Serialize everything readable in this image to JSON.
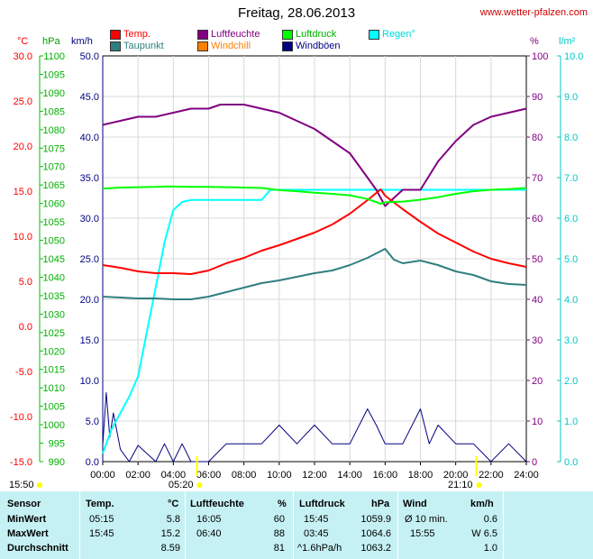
{
  "header": {
    "title": "Freitag, 28.06.2013",
    "site": "www.wetter-pfalzen.com"
  },
  "units": {
    "temp": "°C",
    "hpa": "hPa",
    "kmh": "km/h",
    "pct": "%",
    "lm2": "l/m²"
  },
  "legend": [
    {
      "label": "Temp.",
      "color": "#ff0000",
      "label_color": "#ff0000"
    },
    {
      "label": "Luftfeuchte",
      "color": "#800080",
      "label_color": "#800080"
    },
    {
      "label": "Luftdruck",
      "color": "#00ff00",
      "label_color": "#00b000"
    },
    {
      "label": "Regen°",
      "color": "#00ffff",
      "label_color": "#00d8d8"
    },
    {
      "label": "Taupunkt",
      "color": "#2f7f7f",
      "label_color": "#2f7f7f"
    },
    {
      "label": "Windchill",
      "color": "#ff8000",
      "label_color": "#ff8000"
    },
    {
      "label": "Windböen",
      "color": "#000080",
      "label_color": "#000080"
    }
  ],
  "axes": {
    "temp_ticks": [
      "30.0",
      "25.0",
      "20.0",
      "15.0",
      "10.0",
      "5.0",
      "0.0",
      "-5.0",
      "-10.0",
      "-15.0"
    ],
    "hpa_ticks": [
      "1100",
      "1095",
      "1090",
      "1085",
      "1080",
      "1075",
      "1070",
      "1065",
      "1060",
      "1055",
      "1050",
      "1045",
      "1040",
      "1035",
      "1030",
      "1025",
      "1020",
      "1015",
      "1010",
      "1005",
      "1000",
      "995",
      "990"
    ],
    "kmh_ticks": [
      "50.0",
      "45.0",
      "40.0",
      "35.0",
      "30.0",
      "25.0",
      "20.0",
      "15.0",
      "10.0",
      "5.0",
      "0.0"
    ],
    "pct_ticks": [
      "100",
      "90",
      "80",
      "70",
      "60",
      "50",
      "40",
      "30",
      "20",
      "10",
      "0"
    ],
    "rain_ticks": [
      "10.0",
      "9.0",
      "8.0",
      "7.0",
      "6.0",
      "5.0",
      "4.0",
      "3.0",
      "2.0",
      "1.0",
      "0.0"
    ],
    "time_ticks": [
      "00:00",
      "02:00",
      "04:00",
      "06:00",
      "08:00",
      "10:00",
      "12:00",
      "14:00",
      "16:00",
      "18:00",
      "20:00",
      "22:00",
      "24:00"
    ]
  },
  "markers": {
    "sunrise_label": "05:20",
    "sunset_label": "21:10",
    "daylength_label": "15:50",
    "sun_color": "#ffff00"
  },
  "chart_data": {
    "type": "line",
    "title": "Freitag, 28.06.2013",
    "x_unit": "hours",
    "xlim": [
      0,
      24
    ],
    "series": [
      {
        "name": "Temp.",
        "axis": "°C",
        "ylim": [
          -15,
          30
        ],
        "color": "#ff0000",
        "x": [
          0,
          1,
          2,
          3,
          4,
          5,
          6,
          7,
          8,
          9,
          10,
          11,
          12,
          13,
          14,
          15,
          15.75,
          16,
          17,
          18,
          19,
          20,
          21,
          22,
          23,
          24
        ],
        "y": [
          6.8,
          6.5,
          6.1,
          5.9,
          5.9,
          5.8,
          6.2,
          7.0,
          7.6,
          8.4,
          9.0,
          9.7,
          10.4,
          11.3,
          12.5,
          14.0,
          15.2,
          14.5,
          13.0,
          11.6,
          10.3,
          9.3,
          8.3,
          7.5,
          7.0,
          6.6
        ]
      },
      {
        "name": "Taupunkt",
        "axis": "°C",
        "ylim": [
          -15,
          30
        ],
        "color": "#2f7f7f",
        "x": [
          0,
          1,
          2,
          3,
          4,
          5,
          6,
          7,
          8,
          9,
          10,
          11,
          12,
          13,
          14,
          15,
          16,
          16.5,
          17,
          18,
          19,
          20,
          21,
          22,
          23,
          24
        ],
        "y": [
          3.3,
          3.2,
          3.1,
          3.1,
          3.0,
          3.0,
          3.3,
          3.8,
          4.3,
          4.8,
          5.1,
          5.5,
          5.9,
          6.2,
          6.8,
          7.6,
          8.6,
          7.4,
          7.0,
          7.3,
          6.8,
          6.1,
          5.7,
          5.0,
          4.7,
          4.6
        ]
      },
      {
        "name": "Luftfeuchte",
        "axis": "%",
        "ylim": [
          0,
          100
        ],
        "color": "#800080",
        "x": [
          0,
          1,
          2,
          3,
          4,
          5,
          6,
          6.67,
          8,
          9,
          10,
          11,
          12,
          13,
          14,
          15,
          15.5,
          16,
          16.5,
          17,
          18,
          19,
          20,
          21,
          22,
          23,
          24
        ],
        "y": [
          83,
          84,
          85,
          85,
          86,
          87,
          87,
          88,
          88,
          87,
          86,
          84,
          82,
          79,
          76,
          70,
          67,
          63,
          65,
          67,
          67,
          74,
          79,
          83,
          85,
          86,
          87
        ]
      },
      {
        "name": "Luftdruck",
        "axis": "hPa",
        "ylim": [
          990,
          1100
        ],
        "color": "#00ff00",
        "x": [
          0,
          1,
          2,
          3,
          3.75,
          5,
          6,
          7,
          8,
          9,
          10,
          11,
          12,
          13,
          14,
          15,
          15.75,
          16,
          17,
          18,
          19,
          20,
          21,
          22,
          23,
          24
        ],
        "y": [
          1064.0,
          1064.3,
          1064.4,
          1064.5,
          1064.6,
          1064.5,
          1064.5,
          1064.4,
          1064.3,
          1064.2,
          1063.6,
          1063.3,
          1062.9,
          1062.6,
          1062.2,
          1061.2,
          1059.9,
          1060.3,
          1060.5,
          1061.0,
          1061.7,
          1062.6,
          1063.3,
          1063.7,
          1063.9,
          1064.2
        ]
      },
      {
        "name": "Regen°",
        "axis": "l/m²",
        "ylim": [
          0,
          10
        ],
        "color": "#00ffff",
        "x": [
          0,
          0.5,
          1,
          1.5,
          2,
          2.5,
          3,
          3.5,
          4,
          4.5,
          5,
          6,
          7,
          8,
          9,
          9.5,
          10,
          12,
          14,
          16,
          18,
          20,
          22,
          24
        ],
        "y": [
          0.2,
          0.8,
          1.2,
          1.6,
          2.1,
          3.2,
          4.3,
          5.4,
          6.2,
          6.4,
          6.45,
          6.45,
          6.45,
          6.45,
          6.45,
          6.7,
          6.7,
          6.7,
          6.7,
          6.7,
          6.7,
          6.7,
          6.7,
          6.7
        ]
      },
      {
        "name": "Windböen",
        "axis": "km/h",
        "ylim": [
          0,
          50
        ],
        "color": "#000080",
        "x": [
          0,
          0.2,
          0.4,
          0.6,
          1,
          1.5,
          2,
          3,
          3.5,
          4,
          4.5,
          5,
          6,
          7,
          8,
          9,
          10,
          11,
          12,
          13,
          14,
          15,
          15.5,
          16,
          17,
          18,
          18.5,
          19,
          20,
          21,
          22,
          23,
          24
        ],
        "y": [
          2,
          8.5,
          3,
          6,
          1.5,
          0,
          2,
          0,
          2.2,
          0,
          2.2,
          0,
          0,
          2.2,
          2.2,
          2.2,
          4.5,
          2.2,
          4.5,
          2.2,
          2.2,
          6.5,
          4.5,
          2.2,
          2.2,
          6.5,
          2.2,
          4.5,
          2.2,
          2.2,
          0,
          2.2,
          0
        ]
      }
    ]
  },
  "table": {
    "header": {
      "sensor": "Sensor",
      "temp": "Temp.",
      "temp_unit": "°C",
      "hum": "Luftfeuchte",
      "hum_unit": "%",
      "press": "Luftdruck",
      "press_unit": "hPa",
      "wind": "Wind",
      "wind_unit": "km/h"
    },
    "rows": [
      {
        "label": "MinWert",
        "t_time": "05:15",
        "t_val": "5.8",
        "h_time": "16:05",
        "h_val": "60",
        "p_time": "15:45",
        "p_val": "1059.9",
        "w_time": "Ø 10 min.",
        "w_val": "0.6"
      },
      {
        "label": "MaxWert",
        "t_time": "15:45",
        "t_val": "15.2",
        "h_time": "06:40",
        "h_val": "88",
        "p_time": "03:45",
        "p_val": "1064.6",
        "w_time": "15:55",
        "w_val": "W 6.5"
      },
      {
        "label": "Durchschnitt",
        "t_time": "",
        "t_val": "8.59",
        "h_time": "",
        "h_val": "81",
        "p_time": "^1.6hPa/h",
        "p_val": "1063.2",
        "w_time": "",
        "w_val": "1.0"
      }
    ]
  }
}
